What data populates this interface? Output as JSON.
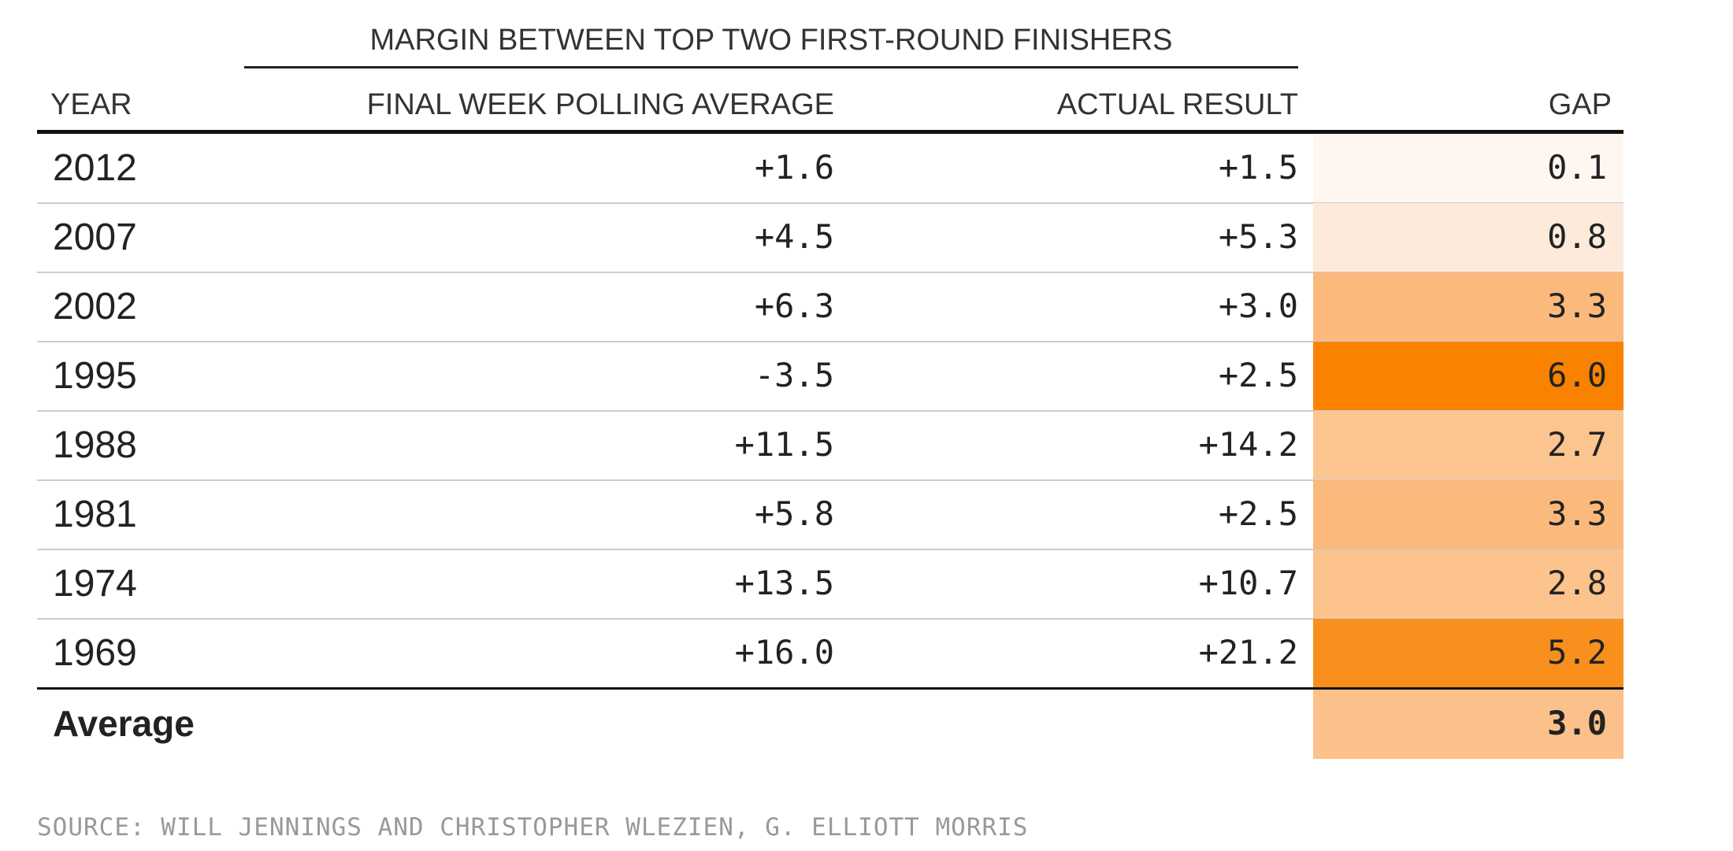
{
  "header": {
    "group_title": "MARGIN BETWEEN TOP TWO FIRST-ROUND FINISHERS",
    "columns": [
      "YEAR",
      "FINAL WEEK POLLING AVERAGE",
      "ACTUAL RESULT",
      "GAP"
    ]
  },
  "table": {
    "rows": [
      [
        "2012",
        "+1.6",
        "+1.5",
        "0.1"
      ],
      [
        "2007",
        "+4.5",
        "+5.3",
        "0.8"
      ],
      [
        "2002",
        "+6.3",
        "+3.0",
        "3.3"
      ],
      [
        "1995",
        "-3.5",
        "+2.5",
        "6.0"
      ],
      [
        "1988",
        "+11.5",
        "+14.2",
        "2.7"
      ],
      [
        "1981",
        "+5.8",
        "+2.5",
        "3.3"
      ],
      [
        "1974",
        "+13.5",
        "+10.7",
        "2.8"
      ],
      [
        "1969",
        "+16.0",
        "+21.2",
        "5.2"
      ]
    ],
    "gap_colors": [
      "#fef7f1",
      "#fdeadb",
      "#fbb97c",
      "#f98300",
      "#fcc590",
      "#fbb97c",
      "#fcc38c",
      "#f98f1d"
    ],
    "average": {
      "label": "Average",
      "gap": "3.0",
      "color": "#fcc18a"
    }
  },
  "source": "SOURCE: WILL JENNINGS AND CHRISTOPHER WLEZIEN, G. ELLIOTT MORRIS"
}
